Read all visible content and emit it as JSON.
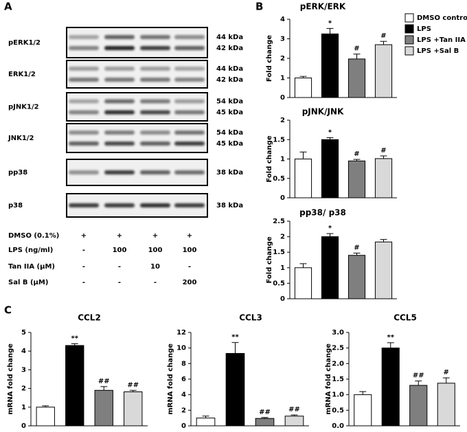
{
  "panel_labels": [
    "A",
    "B",
    "C"
  ],
  "blot": {
    "rows": [
      {
        "label": "pERK1/2",
        "kda": [
          "44 kDa",
          "42 kDa"
        ]
      },
      {
        "label": "ERK1/2",
        "kda": [
          "44 kDa",
          "42 kDa"
        ]
      },
      {
        "label": "pJNK1/2",
        "kda": [
          "54 kDa",
          "45 kDa"
        ]
      },
      {
        "label": "JNK1/2",
        "kda": [
          "54 kDa",
          "45 kDa"
        ]
      },
      {
        "label": "pp38",
        "kda": [
          "38 kDa"
        ]
      },
      {
        "label": "p38",
        "kda": [
          "38 kDa"
        ]
      }
    ],
    "treatments": [
      {
        "label": "DMSO (0.1%)",
        "cells": [
          "+",
          "+",
          "+",
          "+"
        ]
      },
      {
        "label": "LPS (ng/ml)",
        "cells": [
          "-",
          "100",
          "100",
          "100"
        ]
      },
      {
        "label": "Tan IIA (μM)",
        "cells": [
          "-",
          "-",
          "10",
          "-"
        ]
      },
      {
        "label": "Sal B (μM)",
        "cells": [
          "-",
          "-",
          "-",
          "200"
        ]
      }
    ]
  },
  "legend": [
    {
      "name": "DMSO control",
      "color": "#ffffff"
    },
    {
      "name": "LPS",
      "color": "#000000"
    },
    {
      "name": "LPS +Tan IIA",
      "color": "#7f7f7f"
    },
    {
      "name": "LPS +Sal B",
      "color": "#d9d9d9"
    }
  ],
  "chart_data": [
    {
      "type": "bar",
      "title": "pERK/ERK",
      "y_label": "Fold change",
      "ylim": [
        0,
        4
      ],
      "yticks": [
        0,
        1,
        2,
        3,
        4
      ],
      "values": [
        1.0,
        3.25,
        1.97,
        2.7
      ],
      "errors": [
        0.08,
        0.28,
        0.25,
        0.17
      ],
      "annotations": [
        null,
        "*",
        "#",
        "#"
      ]
    },
    {
      "type": "bar",
      "title": "pJNK/JNK",
      "y_label": "Fold change",
      "ylim": [
        0,
        2
      ],
      "yticks": [
        0,
        0.5,
        1,
        1.5,
        2
      ],
      "values": [
        1.0,
        1.5,
        0.95,
        1.01
      ],
      "errors": [
        0.18,
        0.05,
        0.04,
        0.07
      ],
      "annotations": [
        null,
        "*",
        "#",
        "#"
      ]
    },
    {
      "type": "bar",
      "title": "pp38/ p38",
      "y_label": "Fold change",
      "ylim": [
        0,
        2.5
      ],
      "yticks": [
        0,
        0.5,
        1,
        1.5,
        2,
        2.5
      ],
      "values": [
        1.0,
        2.0,
        1.4,
        1.83
      ],
      "errors": [
        0.13,
        0.1,
        0.07,
        0.08
      ],
      "annotations": [
        null,
        "*",
        "#",
        null
      ]
    },
    {
      "type": "bar",
      "title": "CCL2",
      "y_label": "mRNA fold change",
      "ylim": [
        0,
        5
      ],
      "yticks": [
        0,
        1,
        2,
        3,
        4,
        5
      ],
      "values": [
        1.0,
        4.3,
        1.9,
        1.82
      ],
      "errors": [
        0.07,
        0.1,
        0.2,
        0.08
      ],
      "annotations": [
        null,
        "**",
        "##",
        "##"
      ]
    },
    {
      "type": "bar",
      "title": "CCL3",
      "y_label": "mRNA fold change",
      "ylim": [
        0,
        12
      ],
      "yticks": [
        0,
        2,
        4,
        6,
        8,
        10,
        12
      ],
      "values": [
        1.0,
        9.3,
        0.95,
        1.25
      ],
      "errors": [
        0.25,
        1.4,
        0.12,
        0.15
      ],
      "annotations": [
        null,
        "**",
        "##",
        "##"
      ]
    },
    {
      "type": "bar",
      "title": "CCL5",
      "y_label": "mRNA fold change",
      "ylim": [
        0,
        3
      ],
      "yticks": [
        {
          "value": 0,
          "label": "0.0"
        },
        {
          "value": 0.5,
          "label": "0.5"
        },
        {
          "value": 1,
          "label": "1.0"
        },
        {
          "value": 1.5,
          "label": "1.5"
        },
        {
          "value": 2,
          "label": "2.0"
        },
        {
          "value": 2.5,
          "label": "2.5"
        },
        {
          "value": 3,
          "label": "3.0"
        }
      ],
      "values": [
        1.0,
        2.5,
        1.3,
        1.37
      ],
      "errors": [
        0.1,
        0.17,
        0.14,
        0.17
      ],
      "annotations": [
        null,
        "**",
        "##",
        "#"
      ]
    }
  ]
}
